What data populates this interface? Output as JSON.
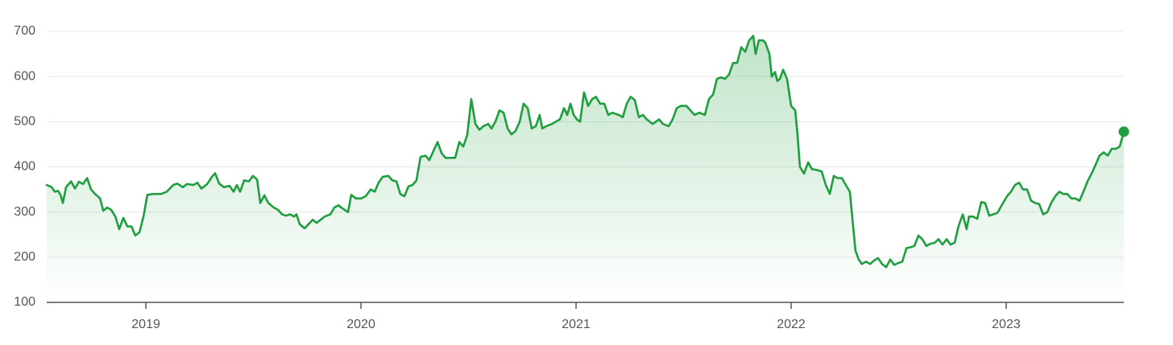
{
  "chart_data": {
    "type": "line",
    "x": [
      2018.539,
      2018.562,
      2018.577,
      2018.592,
      2018.603,
      2018.614,
      2018.629,
      2018.652,
      2018.67,
      2018.689,
      2018.708,
      2018.727,
      2018.745,
      2018.764,
      2018.787,
      2018.802,
      2018.82,
      2018.839,
      2018.858,
      2018.876,
      2018.895,
      2018.914,
      2018.933,
      2018.951,
      2018.97,
      2018.989,
      2019.007,
      2019.034,
      2019.071,
      2019.097,
      2019.127,
      2019.146,
      2019.172,
      2019.191,
      2019.221,
      2019.24,
      2019.258,
      2019.285,
      2019.307,
      2019.322,
      2019.341,
      2019.363,
      2019.389,
      2019.408,
      2019.423,
      2019.438,
      2019.457,
      2019.479,
      2019.498,
      2019.517,
      2019.532,
      2019.551,
      2019.569,
      2019.595,
      2019.614,
      2019.633,
      2019.652,
      2019.67,
      2019.689,
      2019.7,
      2019.715,
      2019.738,
      2019.76,
      2019.775,
      2019.794,
      2019.813,
      2019.831,
      2019.858,
      2019.876,
      2019.895,
      2019.914,
      2019.94,
      2019.955,
      2019.977,
      2020.0,
      2020.022,
      2020.045,
      2020.064,
      2020.082,
      2020.101,
      2020.127,
      2020.146,
      2020.165,
      2020.183,
      2020.202,
      2020.221,
      2020.24,
      2020.258,
      2020.277,
      2020.3,
      2020.318,
      2020.337,
      2020.356,
      2020.375,
      2020.393,
      2020.419,
      2020.438,
      2020.457,
      2020.476,
      2020.494,
      2020.513,
      2020.532,
      2020.551,
      2020.569,
      2020.592,
      2020.607,
      2020.625,
      2020.644,
      2020.663,
      2020.682,
      2020.7,
      2020.719,
      2020.738,
      2020.756,
      2020.775,
      2020.794,
      2020.813,
      2020.831,
      2020.843,
      2020.861,
      2020.888,
      2020.906,
      2020.925,
      2020.944,
      2020.959,
      2020.974,
      2020.989,
      2021.004,
      2021.019,
      2021.037,
      2021.056,
      2021.075,
      2021.093,
      2021.112,
      2021.131,
      2021.15,
      2021.168,
      2021.198,
      2021.217,
      2021.236,
      2021.254,
      2021.273,
      2021.292,
      2021.311,
      2021.329,
      2021.356,
      2021.386,
      2021.404,
      2021.431,
      2021.449,
      2021.468,
      2021.487,
      2021.513,
      2021.532,
      2021.551,
      2021.573,
      2021.599,
      2021.618,
      2021.637,
      2021.655,
      2021.674,
      2021.693,
      2021.712,
      2021.73,
      2021.749,
      2021.768,
      2021.787,
      2021.805,
      2021.824,
      2021.835,
      2021.85,
      2021.869,
      2021.88,
      2021.899,
      2021.91,
      2021.925,
      2021.936,
      2021.948,
      2021.963,
      2021.981,
      2022.0,
      2022.019,
      2022.03,
      2022.041,
      2022.06,
      2022.079,
      2022.097,
      2022.12,
      2022.142,
      2022.161,
      2022.18,
      2022.198,
      2022.217,
      2022.236,
      2022.254,
      2022.273,
      2022.284,
      2022.299,
      2022.314,
      2022.329,
      2022.348,
      2022.367,
      2022.386,
      2022.404,
      2022.423,
      2022.442,
      2022.461,
      2022.479,
      2022.498,
      2022.517,
      2022.536,
      2022.554,
      2022.573,
      2022.592,
      2022.61,
      2022.629,
      2022.648,
      2022.667,
      2022.685,
      2022.704,
      2022.723,
      2022.741,
      2022.76,
      2022.779,
      2022.798,
      2022.816,
      2022.827,
      2022.846,
      2022.865,
      2022.884,
      2022.902,
      2022.921,
      2022.94,
      2022.959,
      2022.985,
      2023.004,
      2023.022,
      2023.041,
      2023.06,
      2023.078,
      2023.097,
      2023.116,
      2023.134,
      2023.153,
      2023.172,
      2023.191,
      2023.209,
      2023.228,
      2023.247,
      2023.266,
      2023.284,
      2023.303,
      2023.322,
      2023.341,
      2023.359,
      2023.378,
      2023.397,
      2023.416,
      2023.434,
      2023.453,
      2023.472,
      2023.491,
      2023.509,
      2023.528,
      2023.547
    ],
    "values": [
      360,
      355,
      345,
      347,
      338,
      320,
      355,
      368,
      352,
      367,
      362,
      375,
      350,
      340,
      330,
      303,
      310,
      305,
      290,
      262,
      287,
      268,
      268,
      248,
      255,
      290,
      338,
      340,
      340,
      345,
      360,
      363,
      355,
      362,
      360,
      365,
      352,
      362,
      378,
      386,
      363,
      355,
      358,
      345,
      360,
      345,
      370,
      368,
      380,
      372,
      320,
      337,
      320,
      310,
      305,
      295,
      292,
      295,
      290,
      295,
      273,
      264,
      275,
      283,
      276,
      283,
      290,
      295,
      310,
      315,
      308,
      300,
      338,
      330,
      330,
      335,
      350,
      345,
      365,
      378,
      380,
      370,
      368,
      340,
      335,
      357,
      360,
      370,
      422,
      425,
      415,
      435,
      455,
      430,
      420,
      420,
      420,
      455,
      445,
      470,
      550,
      495,
      482,
      490,
      495,
      485,
      500,
      525,
      520,
      485,
      472,
      480,
      500,
      540,
      530,
      485,
      490,
      515,
      485,
      490,
      495,
      500,
      505,
      530,
      515,
      540,
      515,
      505,
      500,
      565,
      535,
      550,
      555,
      540,
      540,
      515,
      520,
      515,
      510,
      540,
      555,
      548,
      510,
      515,
      505,
      495,
      505,
      495,
      490,
      505,
      530,
      535,
      535,
      525,
      515,
      520,
      515,
      550,
      560,
      595,
      598,
      595,
      605,
      630,
      630,
      665,
      655,
      680,
      690,
      650,
      680,
      680,
      675,
      650,
      600,
      610,
      590,
      595,
      615,
      595,
      535,
      525,
      470,
      400,
      385,
      410,
      395,
      393,
      390,
      360,
      340,
      380,
      375,
      375,
      360,
      345,
      290,
      215,
      195,
      185,
      190,
      185,
      193,
      198,
      185,
      178,
      195,
      183,
      187,
      190,
      220,
      222,
      225,
      248,
      240,
      225,
      230,
      232,
      240,
      228,
      240,
      228,
      232,
      270,
      295,
      262,
      290,
      290,
      285,
      322,
      320,
      292,
      295,
      298,
      320,
      335,
      345,
      360,
      365,
      350,
      350,
      325,
      320,
      318,
      295,
      300,
      320,
      335,
      345,
      340,
      340,
      330,
      330,
      325,
      345,
      368,
      385,
      405,
      425,
      432,
      425,
      440,
      440,
      445,
      478
    ],
    "color": "#1e9e3e",
    "xlim": [
      2018.539,
      2023.547
    ],
    "xticks": [
      2019,
      2020,
      2021,
      2022,
      2023
    ],
    "ylim": [
      100,
      700
    ],
    "yticks": [
      100,
      200,
      300,
      400,
      500,
      600,
      700
    ],
    "grid": true
  }
}
